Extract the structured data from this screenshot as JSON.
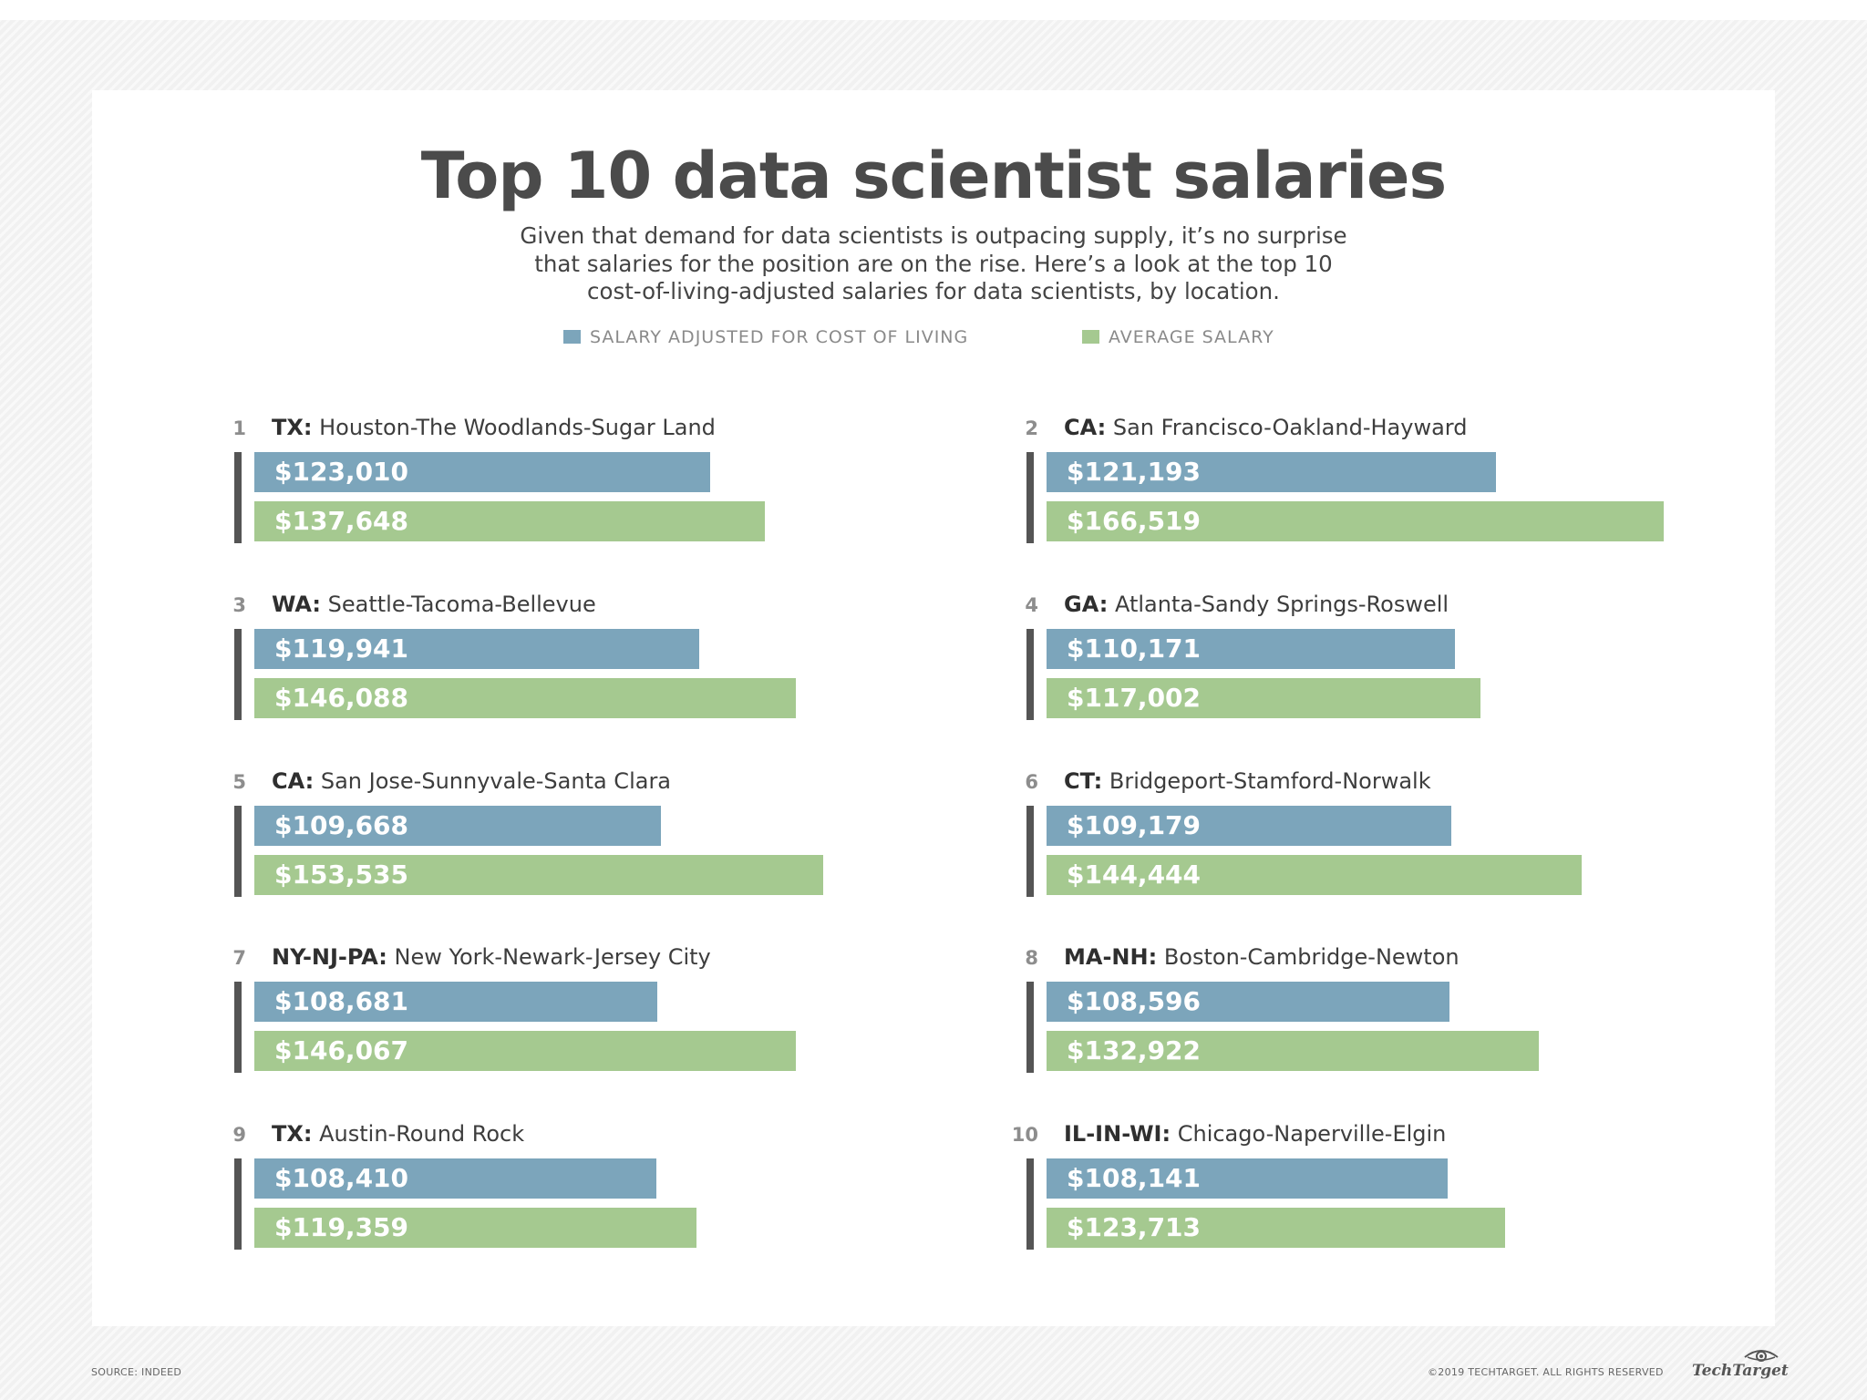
{
  "header": {
    "title": "Top 10 data scientist salaries",
    "subtitle_lines": [
      "Given that demand for data scientists is outpacing supply, it’s no surprise",
      "that salaries for the position are on the rise. Here’s a look at the top 10",
      "cost-of-living-adjusted salaries for data scientists, by location."
    ]
  },
  "legend": {
    "adjusted_label": "SALARY ADJUSTED FOR COST OF LIVING",
    "average_label": "AVERAGE SALARY"
  },
  "colors": {
    "adjusted": "#7ca5bb",
    "average": "#a5c990",
    "accent_line": "#555555"
  },
  "chart_data": {
    "type": "bar",
    "orientation": "horizontal",
    "title": "Top 10 data scientist salaries",
    "series_names": [
      "SALARY ADJUSTED FOR COST OF LIVING",
      "AVERAGE SALARY"
    ],
    "items": [
      {
        "rank": "1",
        "state": "TX:",
        "metro": "Houston-The Woodlands-Sugar Land",
        "adjusted": 123010,
        "adjusted_label": "$123,010",
        "average": 137648,
        "average_label": "$137,648"
      },
      {
        "rank": "2",
        "state": "CA:",
        "metro": "San Francisco-Oakland-Hayward",
        "adjusted": 121193,
        "adjusted_label": "$121,193",
        "average": 166519,
        "average_label": "$166,519"
      },
      {
        "rank": "3",
        "state": "WA:",
        "metro": "Seattle-Tacoma-Bellevue",
        "adjusted": 119941,
        "adjusted_label": "$119,941",
        "average": 146088,
        "average_label": "$146,088"
      },
      {
        "rank": "4",
        "state": "GA:",
        "metro": "Atlanta-Sandy Springs-Roswell",
        "adjusted": 110171,
        "adjusted_label": "$110,171",
        "average": 117002,
        "average_label": "$117,002"
      },
      {
        "rank": "5",
        "state": "CA:",
        "metro": "San Jose-Sunnyvale-Santa Clara",
        "adjusted": 109668,
        "adjusted_label": "$109,668",
        "average": 153535,
        "average_label": "$153,535"
      },
      {
        "rank": "6",
        "state": "CT:",
        "metro": "Bridgeport-Stamford-Norwalk",
        "adjusted": 109179,
        "adjusted_label": "$109,179",
        "average": 144444,
        "average_label": "$144,444"
      },
      {
        "rank": "7",
        "state": "NY-NJ-PA:",
        "metro": "New York-Newark-Jersey City",
        "adjusted": 108681,
        "adjusted_label": "$108,681",
        "average": 146067,
        "average_label": "$146,067"
      },
      {
        "rank": "8",
        "state": "MA-NH:",
        "metro": "Boston-Cambridge-Newton",
        "adjusted": 108596,
        "adjusted_label": "$108,596",
        "average": 132922,
        "average_label": "$132,922"
      },
      {
        "rank": "9",
        "state": "TX:",
        "metro": "Austin-Round Rock",
        "adjusted": 108410,
        "adjusted_label": "$108,410",
        "average": 119359,
        "average_label": "$119,359"
      },
      {
        "rank": "10",
        "state": "IL-IN-WI:",
        "metro": "Chicago-Naperville-Elgin",
        "adjusted": 108141,
        "adjusted_label": "$108,141",
        "average": 123713,
        "average_label": "$123,713"
      }
    ]
  },
  "footer": {
    "source": "SOURCE: INDEED",
    "copyright": "©2019 TECHTARGET. ALL RIGHTS RESERVED",
    "logo": "TechTarget"
  }
}
